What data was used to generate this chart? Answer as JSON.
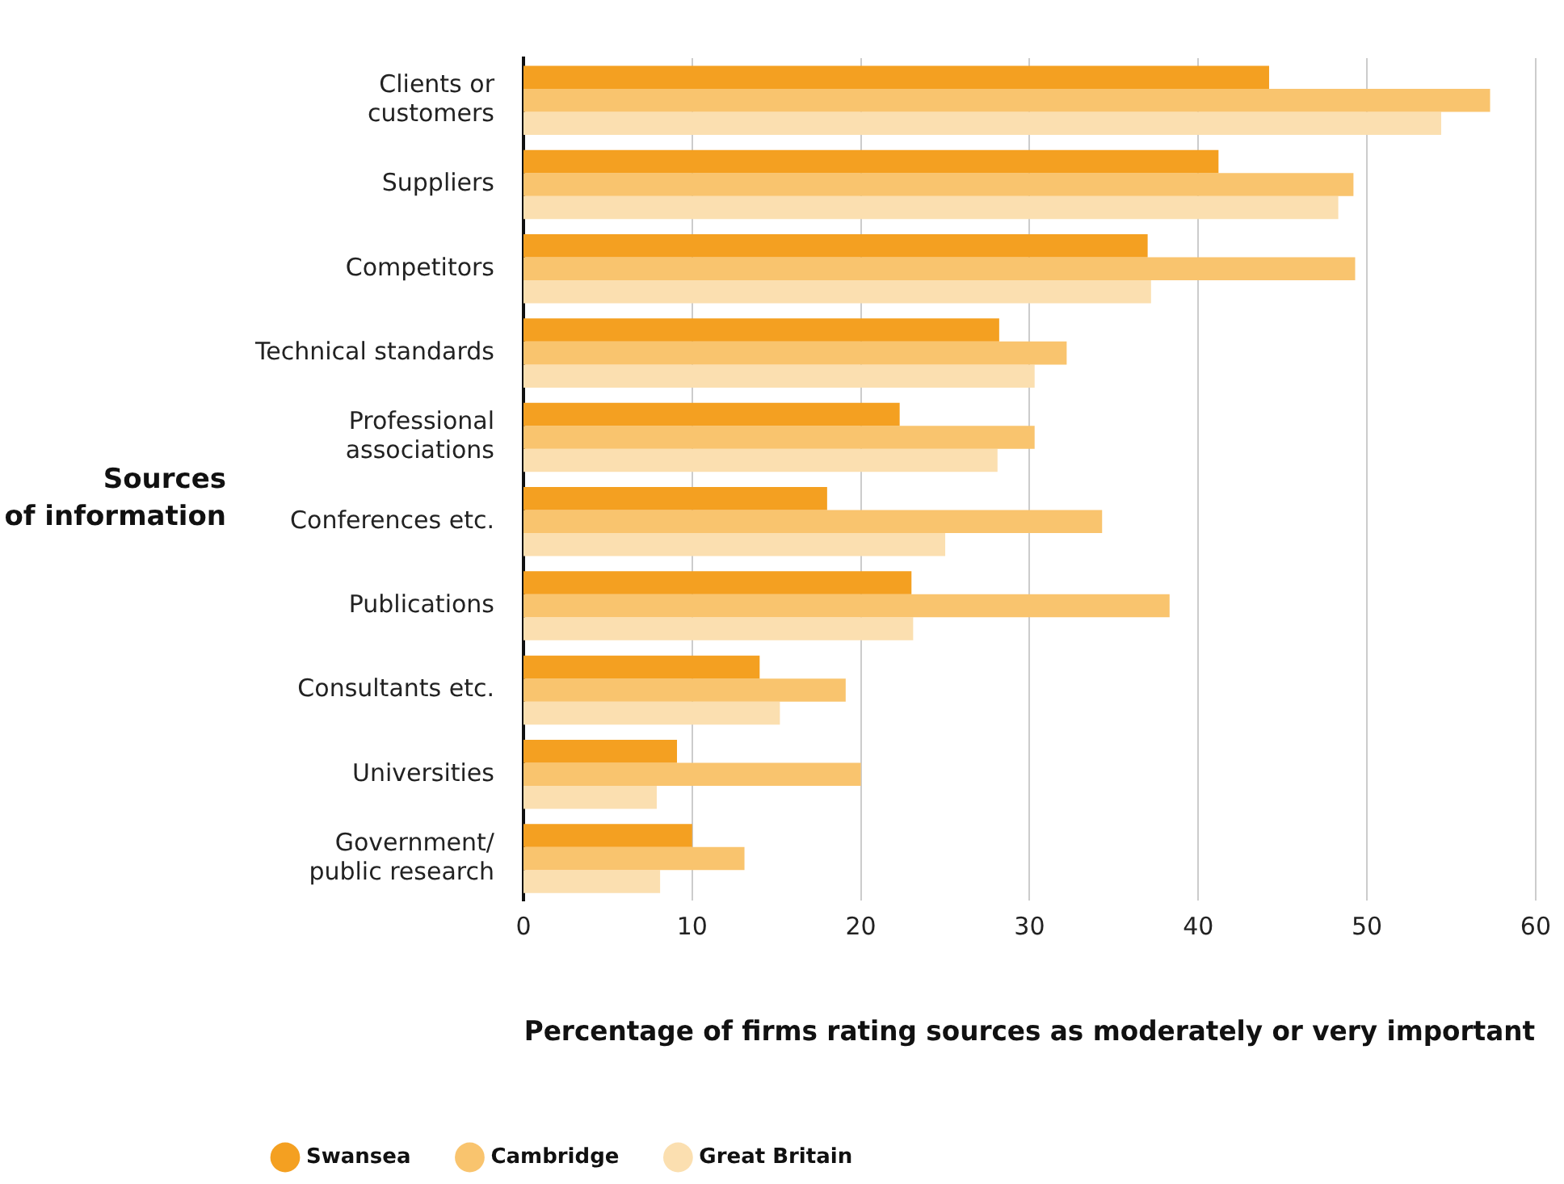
{
  "chart_data": {
    "type": "bar",
    "orientation": "horizontal",
    "xlabel": "Percentage of firms rating sources as moderately or very important",
    "ylabel": "Sources\nof information",
    "categories": [
      "Clients or\ncustomers",
      "Suppliers",
      "Competitors",
      "Technical standards",
      "Professional\nassociations",
      "Conferences etc.",
      "Publications",
      "Consultants etc.",
      "Universities",
      "Government/\npublic research"
    ],
    "series": [
      {
        "name": "Swansea",
        "color": "#f4a021",
        "values": [
          44.2,
          41.2,
          37.0,
          28.2,
          22.3,
          18.0,
          23.0,
          14.0,
          9.1,
          10.0
        ]
      },
      {
        "name": "Cambridge",
        "color": "#f9c46e",
        "values": [
          57.3,
          49.2,
          49.3,
          32.2,
          30.3,
          34.3,
          38.3,
          19.1,
          20.0,
          13.1
        ]
      },
      {
        "name": "Great Britain",
        "color": "#fbdfb0",
        "values": [
          54.4,
          48.3,
          37.2,
          30.3,
          28.1,
          25.0,
          23.1,
          15.2,
          7.9,
          8.1
        ]
      }
    ],
    "xlim": [
      0,
      60
    ],
    "xticks": [
      0,
      10,
      20,
      30,
      40,
      50,
      60
    ],
    "grid": "x",
    "legend": "bottom left"
  }
}
